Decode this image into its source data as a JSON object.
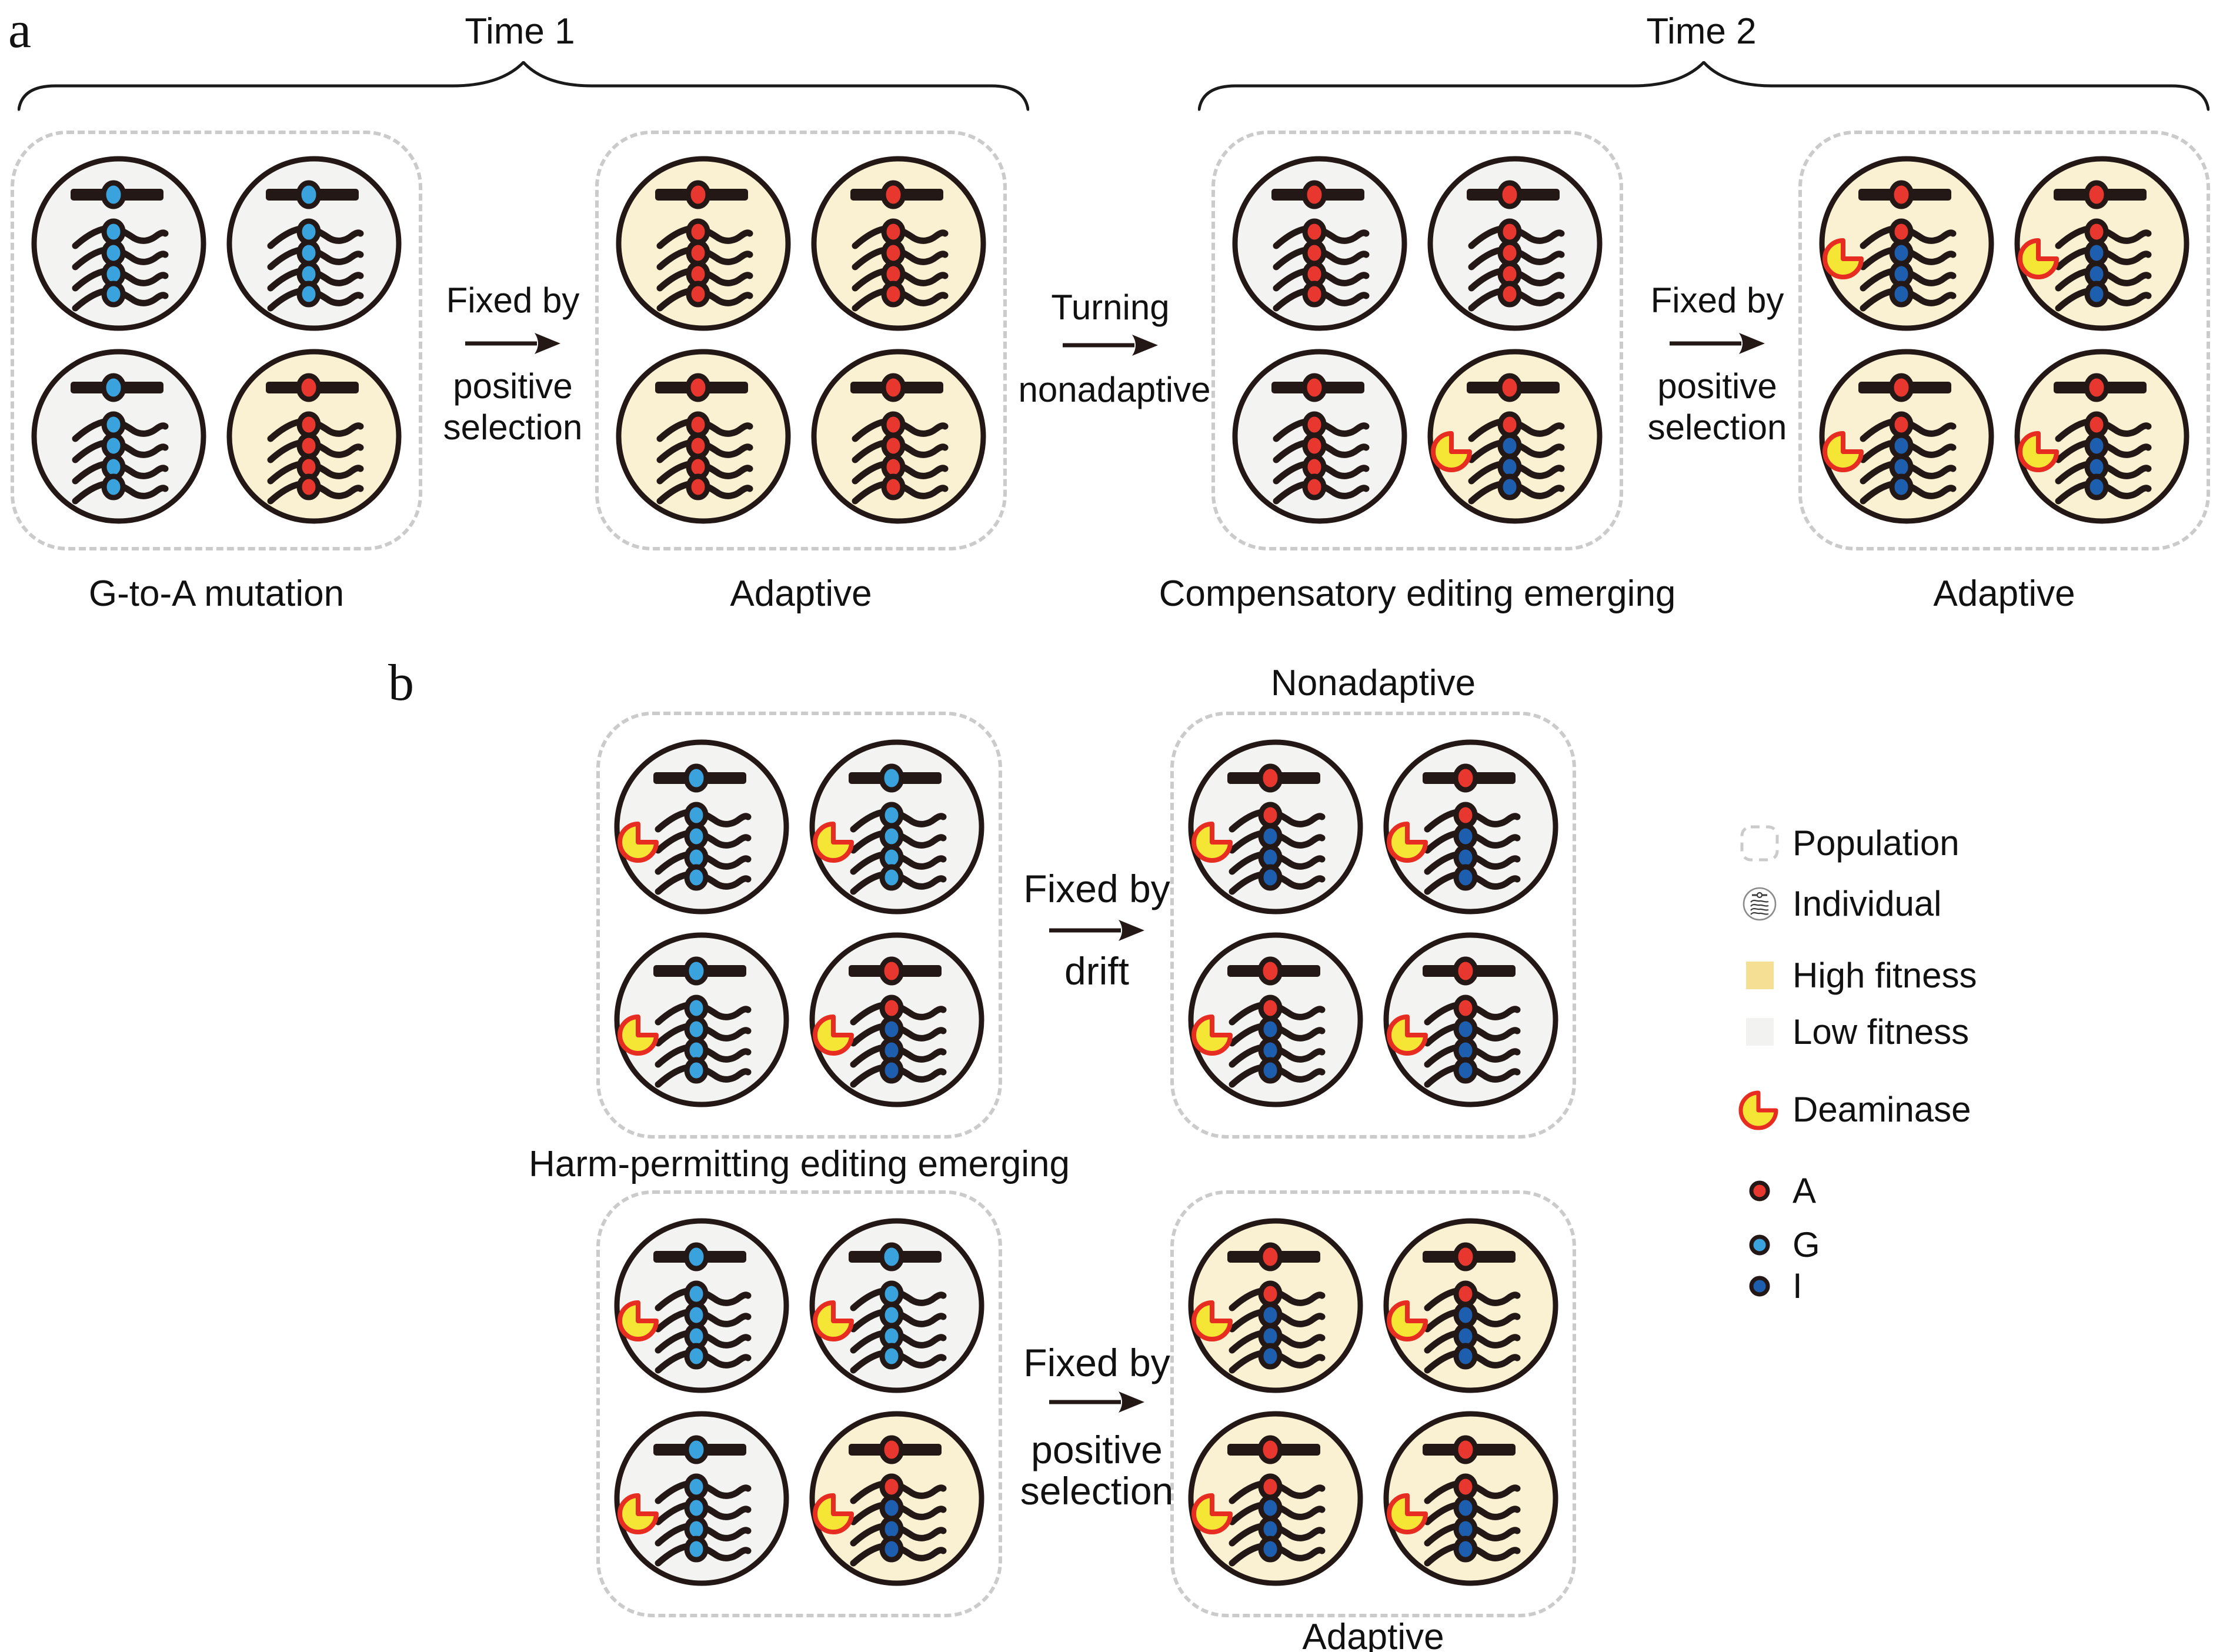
{
  "colors": {
    "outline": "#231815",
    "red_A": "#e7372e",
    "blue_G": "#3aa2dc",
    "blue_I": "#1d5fae",
    "deaminase_fill": "#f5e636",
    "deaminase_stroke": "#e72d21",
    "high_fitness": "#faf0d2",
    "low_fitness": "#f3f3f2",
    "legend_high": "#f5df95",
    "legend_low": "#f2f2f0",
    "population_border": "#cbcbcb",
    "text": "#111111"
  },
  "panels": {
    "a": {
      "letter": "a"
    },
    "b": {
      "letter": "b"
    }
  },
  "braces": {
    "time1": "Time 1",
    "time2": "Time 2"
  },
  "populations": {
    "a1": {
      "label": "G-to-A mutation",
      "cells": [
        {
          "fitness": "low",
          "dna": "G",
          "rna": [
            "G",
            "G",
            "G",
            "G"
          ],
          "deaminase": false
        },
        {
          "fitness": "low",
          "dna": "G",
          "rna": [
            "G",
            "G",
            "G",
            "G"
          ],
          "deaminase": false
        },
        {
          "fitness": "low",
          "dna": "G",
          "rna": [
            "G",
            "G",
            "G",
            "G"
          ],
          "deaminase": false
        },
        {
          "fitness": "high",
          "dna": "A",
          "rna": [
            "A",
            "A",
            "A",
            "A"
          ],
          "deaminase": false
        }
      ]
    },
    "a2": {
      "label": "Adaptive",
      "cells": [
        {
          "fitness": "high",
          "dna": "A",
          "rna": [
            "A",
            "A",
            "A",
            "A"
          ],
          "deaminase": false
        },
        {
          "fitness": "high",
          "dna": "A",
          "rna": [
            "A",
            "A",
            "A",
            "A"
          ],
          "deaminase": false
        },
        {
          "fitness": "high",
          "dna": "A",
          "rna": [
            "A",
            "A",
            "A",
            "A"
          ],
          "deaminase": false
        },
        {
          "fitness": "high",
          "dna": "A",
          "rna": [
            "A",
            "A",
            "A",
            "A"
          ],
          "deaminase": false
        }
      ]
    },
    "a3": {
      "label": "Compensatory editing emerging",
      "cells": [
        {
          "fitness": "low",
          "dna": "A",
          "rna": [
            "A",
            "A",
            "A",
            "A"
          ],
          "deaminase": false
        },
        {
          "fitness": "low",
          "dna": "A",
          "rna": [
            "A",
            "A",
            "A",
            "A"
          ],
          "deaminase": false
        },
        {
          "fitness": "low",
          "dna": "A",
          "rna": [
            "A",
            "A",
            "A",
            "A"
          ],
          "deaminase": false
        },
        {
          "fitness": "high",
          "dna": "A",
          "rna": [
            "A",
            "I",
            "I",
            "I"
          ],
          "deaminase": true
        }
      ]
    },
    "a4": {
      "label": "Adaptive",
      "cells": [
        {
          "fitness": "high",
          "dna": "A",
          "rna": [
            "A",
            "I",
            "I",
            "I"
          ],
          "deaminase": true
        },
        {
          "fitness": "high",
          "dna": "A",
          "rna": [
            "A",
            "I",
            "I",
            "I"
          ],
          "deaminase": true
        },
        {
          "fitness": "high",
          "dna": "A",
          "rna": [
            "A",
            "I",
            "I",
            "I"
          ],
          "deaminase": true
        },
        {
          "fitness": "high",
          "dna": "A",
          "rna": [
            "A",
            "I",
            "I",
            "I"
          ],
          "deaminase": true
        }
      ]
    },
    "b1": {
      "label": "Harm-permitting editing emerging",
      "cells": [
        {
          "fitness": "low",
          "dna": "G",
          "rna": [
            "G",
            "G",
            "G",
            "G"
          ],
          "deaminase": true
        },
        {
          "fitness": "low",
          "dna": "G",
          "rna": [
            "G",
            "G",
            "G",
            "G"
          ],
          "deaminase": true
        },
        {
          "fitness": "low",
          "dna": "G",
          "rna": [
            "G",
            "G",
            "G",
            "G"
          ],
          "deaminase": true
        },
        {
          "fitness": "low",
          "dna": "A",
          "rna": [
            "A",
            "I",
            "I",
            "I"
          ],
          "deaminase": true
        }
      ]
    },
    "b2": {
      "label": "Nonadaptive",
      "cells": [
        {
          "fitness": "low",
          "dna": "A",
          "rna": [
            "A",
            "I",
            "I",
            "I"
          ],
          "deaminase": true
        },
        {
          "fitness": "low",
          "dna": "A",
          "rna": [
            "A",
            "I",
            "I",
            "I"
          ],
          "deaminase": true
        },
        {
          "fitness": "low",
          "dna": "A",
          "rna": [
            "A",
            "I",
            "I",
            "I"
          ],
          "deaminase": true
        },
        {
          "fitness": "low",
          "dna": "A",
          "rna": [
            "A",
            "I",
            "I",
            "I"
          ],
          "deaminase": true
        }
      ]
    },
    "b3": {
      "label": "",
      "cells": [
        {
          "fitness": "low",
          "dna": "G",
          "rna": [
            "G",
            "G",
            "G",
            "G"
          ],
          "deaminase": true
        },
        {
          "fitness": "low",
          "dna": "G",
          "rna": [
            "G",
            "G",
            "G",
            "G"
          ],
          "deaminase": true
        },
        {
          "fitness": "low",
          "dna": "G",
          "rna": [
            "G",
            "G",
            "G",
            "G"
          ],
          "deaminase": true
        },
        {
          "fitness": "high",
          "dna": "A",
          "rna": [
            "A",
            "I",
            "I",
            "I"
          ],
          "deaminase": true
        }
      ]
    },
    "b4": {
      "label": "Adaptive",
      "cells": [
        {
          "fitness": "high",
          "dna": "A",
          "rna": [
            "A",
            "I",
            "I",
            "I"
          ],
          "deaminase": true
        },
        {
          "fitness": "high",
          "dna": "A",
          "rna": [
            "A",
            "I",
            "I",
            "I"
          ],
          "deaminase": true
        },
        {
          "fitness": "high",
          "dna": "A",
          "rna": [
            "A",
            "I",
            "I",
            "I"
          ],
          "deaminase": true
        },
        {
          "fitness": "high",
          "dna": "A",
          "rna": [
            "A",
            "I",
            "I",
            "I"
          ],
          "deaminase": true
        }
      ]
    }
  },
  "arrows": {
    "a1": {
      "above": [
        "Fixed by"
      ],
      "below": [
        "positive",
        "selection"
      ]
    },
    "a2": {
      "above": [
        "Turning"
      ],
      "below": [
        "nonadaptive"
      ]
    },
    "a3": {
      "above": [
        "Fixed by"
      ],
      "below": [
        "positive",
        "selection"
      ]
    },
    "b1": {
      "above": [
        "Fixed by"
      ],
      "below": [
        "drift"
      ]
    },
    "b2": {
      "above": [
        "Fixed by"
      ],
      "below": [
        "positive",
        "selection"
      ]
    }
  },
  "legend": {
    "items": [
      {
        "icon": "population-icon",
        "label": "Population"
      },
      {
        "icon": "individual-icon",
        "label": "Individual"
      },
      {
        "icon": "high-fitness-swatch",
        "label": "High fitness"
      },
      {
        "icon": "low-fitness-swatch",
        "label": "Low fitness"
      },
      {
        "icon": "deaminase-icon",
        "label": "Deaminase"
      },
      {
        "icon": "base-a-dot",
        "label": "A"
      },
      {
        "icon": "base-g-dot",
        "label": "G"
      },
      {
        "icon": "base-i-dot",
        "label": "I"
      }
    ]
  }
}
